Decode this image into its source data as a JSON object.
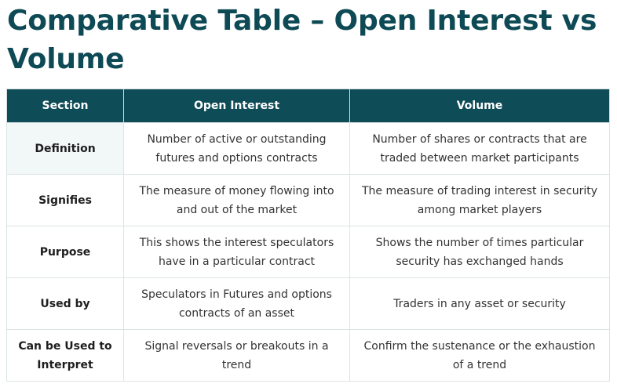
{
  "page": {
    "title": "Comparative Table – Open Interest vs Volume"
  },
  "table": {
    "headers": [
      "Section",
      "Open Interest",
      "Volume"
    ],
    "rows": [
      {
        "section": "Definition",
        "open_interest": "Number of active or outstanding futures and options contracts",
        "volume": "Number of shares or contracts that are traded between market participants"
      },
      {
        "section": "Signifies",
        "open_interest": "The measure of money flowing into and out of the market",
        "volume": "The measure of trading interest in security among market players"
      },
      {
        "section": "Purpose",
        "open_interest": "This shows the interest speculators have in a particular contract",
        "volume": "Shows the number of times particular security has exchanged hands"
      },
      {
        "section": "Used by",
        "open_interest": "Speculators in Futures and options contracts of an asset",
        "volume": "Traders in any asset or security"
      },
      {
        "section": "Can be Used to Interpret",
        "open_interest": "Signal reversals or breakouts in a trend",
        "volume": "Confirm the sustenance or the exhaustion of a trend"
      }
    ]
  },
  "colors": {
    "title": "#0e4a55",
    "header_bg": "#0e4c57",
    "header_text": "#ffffff",
    "first_row_section_bg": "#f2f7f7",
    "border": "#dde3e4"
  }
}
